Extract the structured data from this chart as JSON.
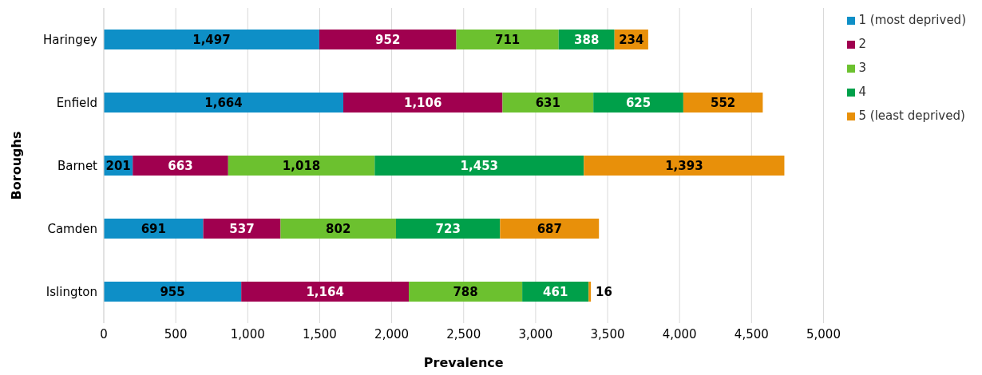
{
  "chart_data": {
    "type": "bar",
    "orientation": "horizontal",
    "stacked": true,
    "xlabel": "Prevalence",
    "ylabel": "Boroughs",
    "categories": [
      "Haringey",
      "Enfield",
      "Barnet",
      "Camden",
      "Islington"
    ],
    "series": [
      {
        "name": "1 (most deprived)",
        "color": "#0e8fc7",
        "values": [
          1497,
          1664,
          201,
          691,
          955
        ],
        "value_labels": [
          "1,497",
          "1,664",
          "201",
          "691",
          "955"
        ]
      },
      {
        "name": "2",
        "color": "#a0004f",
        "values": [
          952,
          1106,
          663,
          537,
          1164
        ],
        "value_labels": [
          "952",
          "1,106",
          "663",
          "537",
          "1,164"
        ]
      },
      {
        "name": "3",
        "color": "#6cc12f",
        "values": [
          711,
          631,
          1018,
          802,
          788
        ],
        "value_labels": [
          "711",
          "631",
          "1,018",
          "802",
          "788"
        ]
      },
      {
        "name": "4",
        "color": "#00a04a",
        "values": [
          388,
          625,
          1453,
          723,
          461
        ],
        "value_labels": [
          "388",
          "625",
          "1,453",
          "723",
          "461"
        ]
      },
      {
        "name": "5 (least deprived)",
        "color": "#e8900a",
        "values": [
          234,
          552,
          1393,
          687,
          16
        ],
        "value_labels": [
          "234",
          "552",
          "1,393",
          "687",
          "16"
        ]
      }
    ],
    "xlim": [
      0,
      5000
    ],
    "xticks": [
      0,
      500,
      {
        "value": 1000,
        "label": "1,000"
      },
      {
        "value": 1500,
        "label": "1,500"
      },
      {
        "value": 2000,
        "label": "2,000"
      },
      {
        "value": 2500,
        "label": "2,500"
      },
      {
        "value": 3000,
        "label": "3,000"
      },
      {
        "value": 3500,
        "label": "3,500"
      },
      {
        "value": 4000,
        "label": "4,000"
      },
      {
        "value": 4500,
        "label": "4,500"
      },
      {
        "value": 5000,
        "label": "5,000"
      }
    ],
    "grid": "x",
    "legend": "top right"
  }
}
